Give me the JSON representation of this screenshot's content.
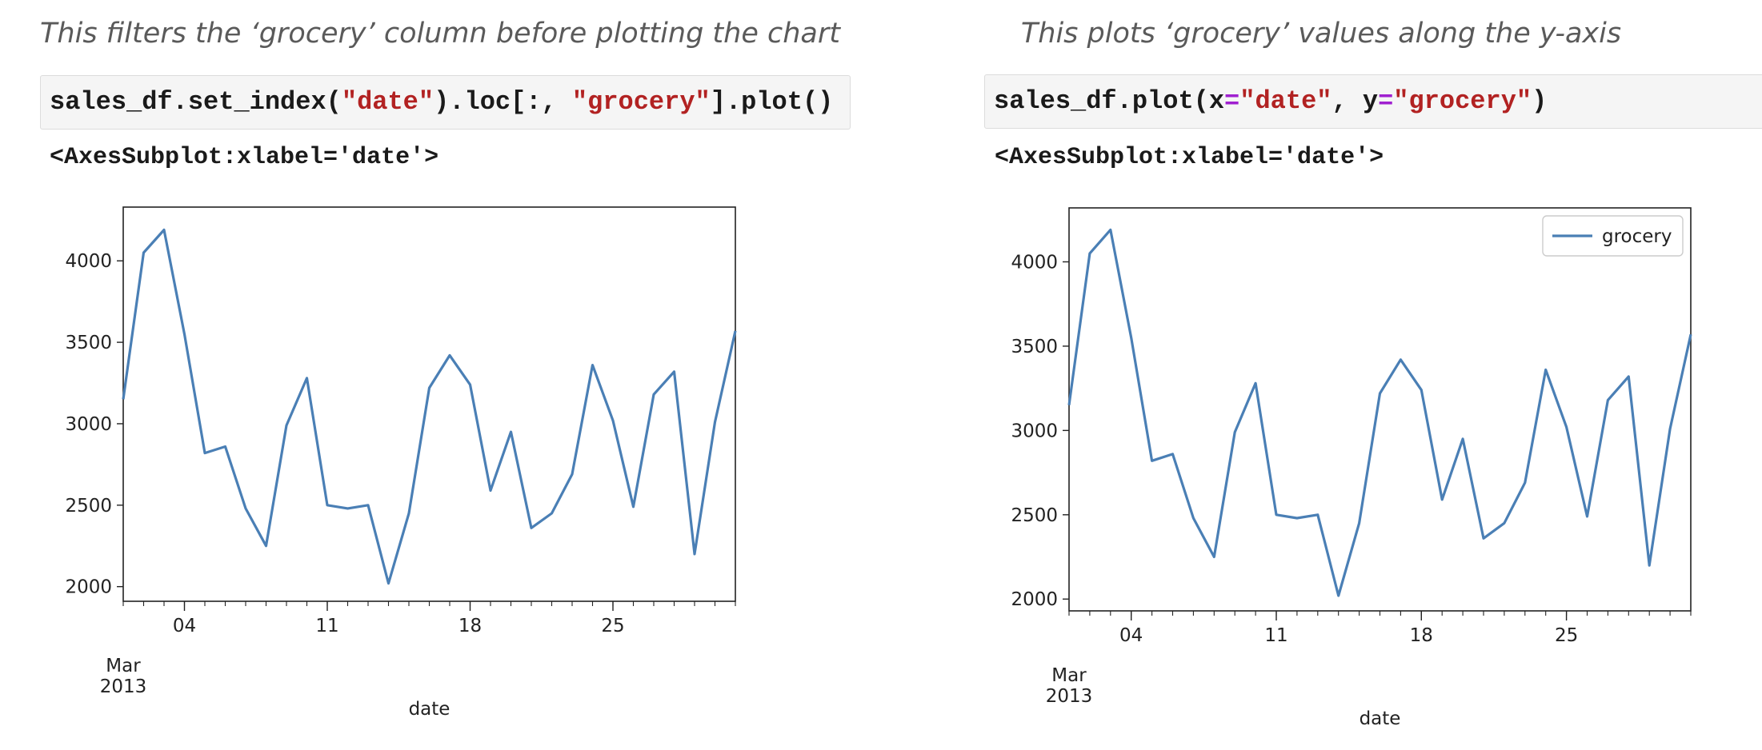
{
  "panels": [
    {
      "caption": "This filters the ‘grocery’ column before plotting the chart",
      "code_tokens": [
        {
          "text": "sales_df.set_index(",
          "kind": "plain"
        },
        {
          "text": "\"date\"",
          "kind": "str"
        },
        {
          "text": ").loc[:, ",
          "kind": "plain"
        },
        {
          "text": "\"grocery\"",
          "kind": "str"
        },
        {
          "text": "].plot()",
          "kind": "plain"
        }
      ],
      "output": "<AxesSubplot:xlabel='date'>"
    },
    {
      "caption": "This plots ‘grocery’ values along the y-axis",
      "code_tokens": [
        {
          "text": "sales_df.plot(x",
          "kind": "plain"
        },
        {
          "text": "=",
          "kind": "op"
        },
        {
          "text": "\"date\"",
          "kind": "str"
        },
        {
          "text": ", y",
          "kind": "plain"
        },
        {
          "text": "=",
          "kind": "op"
        },
        {
          "text": "\"grocery\"",
          "kind": "str"
        },
        {
          "text": ")",
          "kind": "plain"
        }
      ],
      "output": "<AxesSubplot:xlabel='date'>"
    }
  ],
  "chart_data": [
    {
      "type": "line",
      "title": "",
      "xlabel": "date",
      "ylabel": "",
      "x": [
        "2013-03-01",
        "2013-03-02",
        "2013-03-03",
        "2013-03-04",
        "2013-03-05",
        "2013-03-06",
        "2013-03-07",
        "2013-03-08",
        "2013-03-09",
        "2013-03-10",
        "2013-03-11",
        "2013-03-12",
        "2013-03-13",
        "2013-03-14",
        "2013-03-15",
        "2013-03-16",
        "2013-03-17",
        "2013-03-18",
        "2013-03-19",
        "2013-03-20",
        "2013-03-21",
        "2013-03-22",
        "2013-03-23",
        "2013-03-24",
        "2013-03-25",
        "2013-03-26",
        "2013-03-27",
        "2013-03-28",
        "2013-03-29",
        "2013-03-30",
        "2013-03-31"
      ],
      "series": [
        {
          "name": "",
          "color": "#4a7fb5",
          "values": [
            3150,
            4050,
            4190,
            3550,
            2820,
            2860,
            2480,
            2250,
            2990,
            3280,
            2500,
            2480,
            2500,
            2020,
            2450,
            3220,
            3420,
            3240,
            2590,
            2950,
            2360,
            2450,
            2690,
            3360,
            3020,
            2490,
            3180,
            3320,
            2200,
            3010,
            3570
          ]
        }
      ],
      "ylim": [
        1910,
        4330
      ],
      "yticks": [
        2000,
        2500,
        3000,
        3500,
        4000
      ],
      "xticks": [
        "04",
        "11",
        "18",
        "25"
      ],
      "x_tick_secondary": [
        "Mar",
        "2013"
      ],
      "legend": null,
      "grid": false
    },
    {
      "type": "line",
      "title": "",
      "xlabel": "date",
      "ylabel": "",
      "x": [
        "2013-03-01",
        "2013-03-02",
        "2013-03-03",
        "2013-03-04",
        "2013-03-05",
        "2013-03-06",
        "2013-03-07",
        "2013-03-08",
        "2013-03-09",
        "2013-03-10",
        "2013-03-11",
        "2013-03-12",
        "2013-03-13",
        "2013-03-14",
        "2013-03-15",
        "2013-03-16",
        "2013-03-17",
        "2013-03-18",
        "2013-03-19",
        "2013-03-20",
        "2013-03-21",
        "2013-03-22",
        "2013-03-23",
        "2013-03-24",
        "2013-03-25",
        "2013-03-26",
        "2013-03-27",
        "2013-03-28",
        "2013-03-29",
        "2013-03-30",
        "2013-03-31"
      ],
      "series": [
        {
          "name": "grocery",
          "color": "#4a7fb5",
          "values": [
            3150,
            4050,
            4190,
            3550,
            2820,
            2860,
            2480,
            2250,
            2990,
            3280,
            2500,
            2480,
            2500,
            2020,
            2450,
            3220,
            3420,
            3240,
            2590,
            2950,
            2360,
            2450,
            2690,
            3360,
            3020,
            2490,
            3180,
            3320,
            2200,
            3010,
            3570
          ]
        }
      ],
      "ylim": [
        1930,
        4320
      ],
      "yticks": [
        2000,
        2500,
        3000,
        3500,
        4000
      ],
      "xticks": [
        "04",
        "11",
        "18",
        "25"
      ],
      "x_tick_secondary": [
        "Mar",
        "2013"
      ],
      "legend": "top-right",
      "grid": false
    }
  ]
}
